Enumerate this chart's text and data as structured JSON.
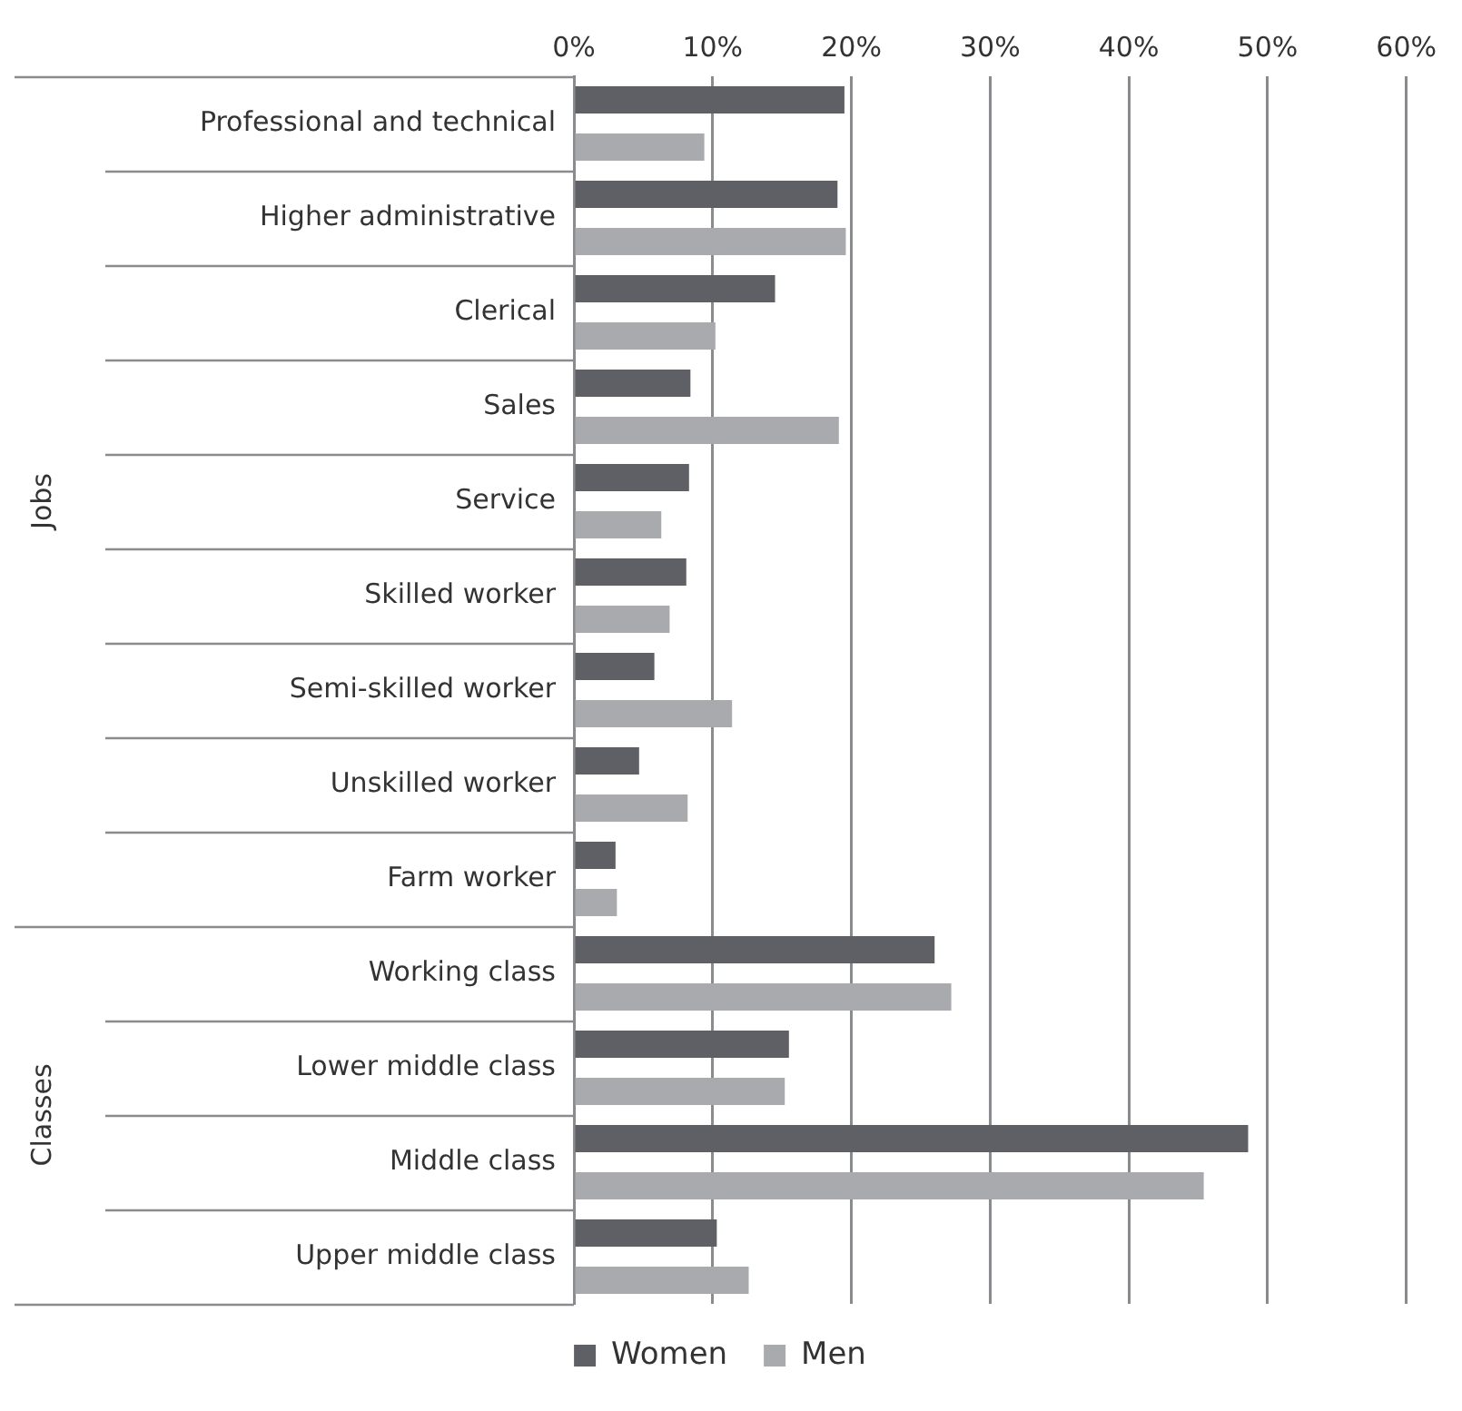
{
  "chart_data": {
    "type": "bar",
    "orientation": "horizontal",
    "categories": [
      "Professional and technical",
      "Higher administrative",
      "Clerical",
      "Sales",
      "Service",
      "Skilled worker",
      "Semi-skilled worker",
      "Unskilled worker",
      "Farm worker",
      "Working class",
      "Lower middle class",
      "Middle class",
      "Upper middle class"
    ],
    "series": [
      {
        "name": "Women",
        "color": "#5f6066",
        "values": [
          19.5,
          19.0,
          14.5,
          8.4,
          8.3,
          8.1,
          5.8,
          4.7,
          3.0,
          26.0,
          15.5,
          48.6,
          10.3
        ]
      },
      {
        "name": "Men",
        "color": "#a8aaae",
        "values": [
          9.4,
          19.6,
          10.2,
          19.1,
          6.3,
          6.9,
          11.4,
          8.2,
          3.1,
          27.2,
          15.2,
          45.4,
          12.6
        ]
      }
    ],
    "xlim": [
      0,
      60
    ],
    "xticks": [
      {
        "value": 0,
        "label": "0%"
      },
      {
        "value": 10,
        "label": "10%"
      },
      {
        "value": 20,
        "label": "20%"
      },
      {
        "value": 30,
        "label": "30%"
      },
      {
        "value": 40,
        "label": "40%"
      },
      {
        "value": 50,
        "label": "50%"
      },
      {
        "value": 60,
        "label": "60%"
      }
    ],
    "grid": "x",
    "legend": "bottom",
    "annotations": [
      "Jobs",
      "Classes"
    ]
  }
}
